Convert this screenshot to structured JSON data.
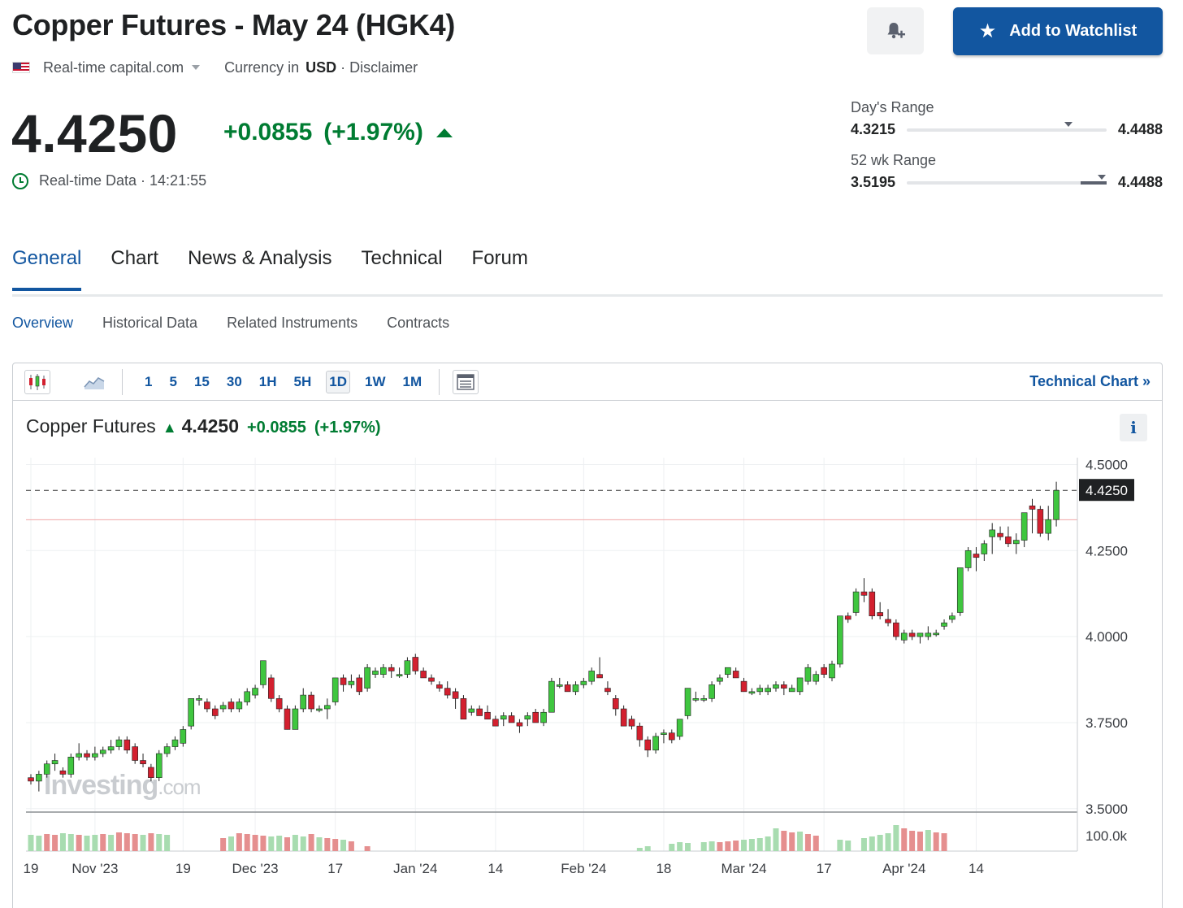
{
  "header": {
    "title": "Copper Futures - May 24 (HGK4)",
    "source": "Real-time capital.com",
    "currency_label": "Currency in",
    "currency": "USD",
    "disclaimer": "· Disclaimer",
    "watchlist_label": "Add to Watchlist"
  },
  "quote": {
    "price": "4.4250",
    "change": "+0.0855",
    "change_pct": "(+1.97%)",
    "realtime_label": "Real-time Data · 14:21:55",
    "up_color": "#007c32",
    "down_color": "#d3202f"
  },
  "ranges": {
    "day": {
      "label": "Day's Range",
      "low": "4.3215",
      "high": "4.4488",
      "marker_fraction": 0.81
    },
    "week52": {
      "label": "52 wk Range",
      "low": "3.5195",
      "high": "4.4488",
      "marker_fraction": 0.975,
      "fill_from_fraction": 0.87
    }
  },
  "tabs": [
    {
      "label": "General",
      "active": true
    },
    {
      "label": "Chart",
      "active": false
    },
    {
      "label": "News & Analysis",
      "active": false
    },
    {
      "label": "Technical",
      "active": false
    },
    {
      "label": "Forum",
      "active": false
    }
  ],
  "subtabs": [
    {
      "label": "Overview",
      "active": true
    },
    {
      "label": "Historical Data",
      "active": false
    },
    {
      "label": "Related Instruments",
      "active": false
    },
    {
      "label": "Contracts",
      "active": false
    }
  ],
  "chart_toolbar": {
    "timeframes": [
      "1",
      "5",
      "15",
      "30",
      "1H",
      "5H",
      "1D",
      "1W",
      "1M"
    ],
    "active_timeframe": "1D",
    "technical_chart_label": "Technical Chart »"
  },
  "chart_legend": {
    "name": "Copper Futures",
    "price": "4.4250",
    "change": "+0.0855",
    "change_pct": "(+1.97%)"
  },
  "watermark": {
    "brand": "Investing",
    "suffix": ".com"
  },
  "chart_data": {
    "type": "candlestick",
    "y_ticks": [
      "4.5000",
      "4.2500",
      "4.0000",
      "3.7500",
      "3.5000"
    ],
    "y_range": [
      3.49,
      4.52
    ],
    "current_price_label": "4.4250",
    "current_price": 4.425,
    "prev_close": 4.3395,
    "volume_tick": "100.0k",
    "x_ticks": [
      "19",
      "Nov '23",
      "19",
      "Dec '23",
      "17",
      "Jan '24",
      "14",
      "Feb '24",
      "18",
      "Mar '24",
      "17",
      "Apr '24",
      "14"
    ],
    "x_tick_index": [
      0,
      8,
      19,
      28,
      38,
      48,
      58,
      69,
      79,
      89,
      99,
      109,
      118
    ],
    "ohlc": [
      [
        3.59,
        3.6,
        3.57,
        3.58
      ],
      [
        3.58,
        3.61,
        3.55,
        3.6
      ],
      [
        3.6,
        3.64,
        3.59,
        3.63
      ],
      [
        3.63,
        3.66,
        3.61,
        3.64
      ],
      [
        3.61,
        3.62,
        3.59,
        3.6
      ],
      [
        3.6,
        3.66,
        3.59,
        3.65
      ],
      [
        3.65,
        3.69,
        3.64,
        3.66
      ],
      [
        3.66,
        3.67,
        3.64,
        3.65
      ],
      [
        3.65,
        3.68,
        3.64,
        3.66
      ],
      [
        3.66,
        3.68,
        3.65,
        3.67
      ],
      [
        3.67,
        3.7,
        3.66,
        3.68
      ],
      [
        3.68,
        3.71,
        3.67,
        3.7
      ],
      [
        3.7,
        3.71,
        3.66,
        3.67
      ],
      [
        3.68,
        3.69,
        3.63,
        3.64
      ],
      [
        3.64,
        3.66,
        3.62,
        3.63
      ],
      [
        3.62,
        3.63,
        3.58,
        3.59
      ],
      [
        3.59,
        3.67,
        3.58,
        3.66
      ],
      [
        3.66,
        3.69,
        3.65,
        3.68
      ],
      [
        3.68,
        3.71,
        3.67,
        3.7
      ],
      [
        3.69,
        3.74,
        3.68,
        3.73
      ],
      [
        3.74,
        3.82,
        3.73,
        3.82
      ],
      [
        3.82,
        3.83,
        3.8,
        3.82
      ],
      [
        3.81,
        3.82,
        3.78,
        3.79
      ],
      [
        3.79,
        3.8,
        3.76,
        3.77
      ],
      [
        3.79,
        3.81,
        3.78,
        3.8
      ],
      [
        3.81,
        3.82,
        3.78,
        3.79
      ],
      [
        3.79,
        3.82,
        3.78,
        3.81
      ],
      [
        3.81,
        3.85,
        3.8,
        3.84
      ],
      [
        3.83,
        3.86,
        3.82,
        3.85
      ],
      [
        3.86,
        3.93,
        3.85,
        3.93
      ],
      [
        3.88,
        3.89,
        3.81,
        3.82
      ],
      [
        3.82,
        3.83,
        3.78,
        3.79
      ],
      [
        3.79,
        3.8,
        3.73,
        3.73
      ],
      [
        3.73,
        3.8,
        3.73,
        3.79
      ],
      [
        3.79,
        3.85,
        3.78,
        3.83
      ],
      [
        3.83,
        3.84,
        3.78,
        3.79
      ],
      [
        3.79,
        3.8,
        3.78,
        3.79
      ],
      [
        3.79,
        3.82,
        3.76,
        3.8
      ],
      [
        3.81,
        3.88,
        3.8,
        3.88
      ],
      [
        3.88,
        3.89,
        3.84,
        3.86
      ],
      [
        3.86,
        3.89,
        3.85,
        3.87
      ],
      [
        3.88,
        3.89,
        3.83,
        3.84
      ],
      [
        3.85,
        3.92,
        3.84,
        3.91
      ],
      [
        3.89,
        3.91,
        3.88,
        3.9
      ],
      [
        3.89,
        3.92,
        3.88,
        3.91
      ],
      [
        3.91,
        3.92,
        3.88,
        3.9
      ],
      [
        3.89,
        3.91,
        3.88,
        3.89
      ],
      [
        3.89,
        3.94,
        3.88,
        3.93
      ],
      [
        3.94,
        3.95,
        3.89,
        3.9
      ],
      [
        3.9,
        3.91,
        3.88,
        3.88
      ],
      [
        3.88,
        3.89,
        3.86,
        3.87
      ],
      [
        3.86,
        3.87,
        3.84,
        3.85
      ],
      [
        3.85,
        3.87,
        3.82,
        3.83
      ],
      [
        3.84,
        3.85,
        3.79,
        3.82
      ],
      [
        3.82,
        3.83,
        3.76,
        3.76
      ],
      [
        3.78,
        3.8,
        3.77,
        3.79
      ],
      [
        3.79,
        3.8,
        3.77,
        3.77
      ],
      [
        3.78,
        3.8,
        3.76,
        3.76
      ],
      [
        3.76,
        3.77,
        3.74,
        3.74
      ],
      [
        3.76,
        3.78,
        3.74,
        3.77
      ],
      [
        3.77,
        3.78,
        3.75,
        3.75
      ],
      [
        3.75,
        3.76,
        3.72,
        3.74
      ],
      [
        3.76,
        3.78,
        3.74,
        3.77
      ],
      [
        3.78,
        3.79,
        3.75,
        3.75
      ],
      [
        3.75,
        3.79,
        3.74,
        3.78
      ],
      [
        3.78,
        3.88,
        3.78,
        3.87
      ],
      [
        3.86,
        3.88,
        3.85,
        3.86
      ],
      [
        3.86,
        3.87,
        3.84,
        3.84
      ],
      [
        3.84,
        3.87,
        3.83,
        3.86
      ],
      [
        3.86,
        3.88,
        3.85,
        3.87
      ],
      [
        3.87,
        3.91,
        3.86,
        3.9
      ],
      [
        3.89,
        3.94,
        3.88,
        3.88
      ],
      [
        3.85,
        3.87,
        3.83,
        3.84
      ],
      [
        3.82,
        3.83,
        3.77,
        3.79
      ],
      [
        3.79,
        3.8,
        3.74,
        3.74
      ],
      [
        3.76,
        3.77,
        3.73,
        3.74
      ],
      [
        3.74,
        3.75,
        3.68,
        3.7
      ],
      [
        3.7,
        3.71,
        3.65,
        3.67
      ],
      [
        3.67,
        3.72,
        3.66,
        3.71
      ],
      [
        3.72,
        3.73,
        3.69,
        3.72
      ],
      [
        3.72,
        3.73,
        3.69,
        3.7
      ],
      [
        3.71,
        3.76,
        3.7,
        3.76
      ],
      [
        3.77,
        3.85,
        3.76,
        3.85
      ],
      [
        3.82,
        3.84,
        3.81,
        3.82
      ],
      [
        3.82,
        3.83,
        3.81,
        3.82
      ],
      [
        3.82,
        3.87,
        3.81,
        3.86
      ],
      [
        3.87,
        3.89,
        3.86,
        3.88
      ],
      [
        3.89,
        3.91,
        3.88,
        3.91
      ],
      [
        3.9,
        3.91,
        3.88,
        3.88
      ],
      [
        3.87,
        3.88,
        3.84,
        3.84
      ],
      [
        3.84,
        3.85,
        3.83,
        3.84
      ],
      [
        3.84,
        3.86,
        3.83,
        3.85
      ],
      [
        3.84,
        3.86,
        3.83,
        3.85
      ],
      [
        3.85,
        3.87,
        3.84,
        3.86
      ],
      [
        3.86,
        3.87,
        3.83,
        3.85
      ],
      [
        3.84,
        3.86,
        3.84,
        3.85
      ],
      [
        3.84,
        3.88,
        3.83,
        3.88
      ],
      [
        3.87,
        3.92,
        3.86,
        3.91
      ],
      [
        3.87,
        3.9,
        3.86,
        3.89
      ],
      [
        3.91,
        3.92,
        3.88,
        3.89
      ],
      [
        3.88,
        3.93,
        3.87,
        3.92
      ],
      [
        3.92,
        4.06,
        3.91,
        4.06
      ],
      [
        4.06,
        4.07,
        4.04,
        4.05
      ],
      [
        4.07,
        4.14,
        4.06,
        4.13
      ],
      [
        4.13,
        4.17,
        4.1,
        4.12
      ],
      [
        4.13,
        4.14,
        4.05,
        4.06
      ],
      [
        4.07,
        4.1,
        4.05,
        4.06
      ],
      [
        4.05,
        4.08,
        4.03,
        4.04
      ],
      [
        4.04,
        4.05,
        3.99,
        4.0
      ],
      [
        3.99,
        4.02,
        3.98,
        4.01
      ],
      [
        4.01,
        4.02,
        3.99,
        4.0
      ],
      [
        4.0,
        4.01,
        3.98,
        4.01
      ],
      [
        4.0,
        4.03,
        3.99,
        4.01
      ],
      [
        4.01,
        4.02,
        4.0,
        4.01
      ],
      [
        4.03,
        4.05,
        4.02,
        4.04
      ],
      [
        4.05,
        4.07,
        4.04,
        4.06
      ],
      [
        4.07,
        4.2,
        4.06,
        4.2
      ],
      [
        4.2,
        4.26,
        4.19,
        4.25
      ],
      [
        4.24,
        4.26,
        4.19,
        4.23
      ],
      [
        4.24,
        4.28,
        4.22,
        4.27
      ],
      [
        4.29,
        4.33,
        4.24,
        4.31
      ],
      [
        4.3,
        4.32,
        4.28,
        4.29
      ],
      [
        4.29,
        4.32,
        4.26,
        4.27
      ],
      [
        4.27,
        4.3,
        4.24,
        4.28
      ],
      [
        4.28,
        4.35,
        4.26,
        4.36
      ],
      [
        4.38,
        4.4,
        4.3,
        4.37
      ],
      [
        4.37,
        4.38,
        4.29,
        4.3
      ],
      [
        4.3,
        4.38,
        4.28,
        4.34
      ],
      [
        4.34,
        4.45,
        4.32,
        4.425
      ]
    ],
    "volume": [
      [
        0,
        40,
        "g"
      ],
      [
        1,
        38,
        "g"
      ],
      [
        2,
        42,
        "r"
      ],
      [
        3,
        40,
        "r"
      ],
      [
        4,
        44,
        "g"
      ],
      [
        5,
        42,
        "g"
      ],
      [
        6,
        40,
        "r"
      ],
      [
        7,
        38,
        "g"
      ],
      [
        8,
        40,
        "g"
      ],
      [
        9,
        42,
        "r"
      ],
      [
        10,
        40,
        "g"
      ],
      [
        11,
        46,
        "r"
      ],
      [
        12,
        44,
        "r"
      ],
      [
        13,
        42,
        "r"
      ],
      [
        14,
        40,
        "g"
      ],
      [
        15,
        44,
        "r"
      ],
      [
        16,
        42,
        "g"
      ],
      [
        17,
        40,
        "g"
      ],
      [
        24,
        32,
        "r"
      ],
      [
        25,
        36,
        "g"
      ],
      [
        26,
        44,
        "r"
      ],
      [
        27,
        42,
        "r"
      ],
      [
        28,
        40,
        "r"
      ],
      [
        29,
        38,
        "r"
      ],
      [
        30,
        36,
        "g"
      ],
      [
        31,
        38,
        "g"
      ],
      [
        32,
        34,
        "r"
      ],
      [
        33,
        40,
        "g"
      ],
      [
        34,
        36,
        "g"
      ],
      [
        35,
        42,
        "r"
      ],
      [
        36,
        34,
        "g"
      ],
      [
        37,
        32,
        "r"
      ],
      [
        38,
        30,
        "r"
      ],
      [
        39,
        28,
        "g"
      ],
      [
        40,
        24,
        "r"
      ],
      [
        42,
        12,
        "r"
      ],
      [
        76,
        8,
        "g"
      ],
      [
        77,
        12,
        "g"
      ],
      [
        80,
        18,
        "g"
      ],
      [
        81,
        22,
        "g"
      ],
      [
        82,
        20,
        "g"
      ],
      [
        84,
        22,
        "g"
      ],
      [
        85,
        24,
        "g"
      ],
      [
        86,
        22,
        "r"
      ],
      [
        87,
        24,
        "r"
      ],
      [
        88,
        26,
        "r"
      ],
      [
        89,
        28,
        "g"
      ],
      [
        90,
        30,
        "g"
      ],
      [
        91,
        32,
        "g"
      ],
      [
        92,
        36,
        "g"
      ],
      [
        93,
        56,
        "g"
      ],
      [
        94,
        50,
        "r"
      ],
      [
        95,
        46,
        "r"
      ],
      [
        96,
        48,
        "g"
      ],
      [
        97,
        42,
        "r"
      ],
      [
        98,
        38,
        "r"
      ],
      [
        101,
        28,
        "g"
      ],
      [
        102,
        26,
        "g"
      ],
      [
        104,
        32,
        "g"
      ],
      [
        105,
        36,
        "g"
      ],
      [
        106,
        40,
        "g"
      ],
      [
        107,
        44,
        "g"
      ],
      [
        108,
        64,
        "g"
      ],
      [
        109,
        56,
        "r"
      ],
      [
        110,
        50,
        "r"
      ],
      [
        111,
        48,
        "r"
      ],
      [
        112,
        52,
        "g"
      ],
      [
        113,
        46,
        "r"
      ],
      [
        114,
        44,
        "r"
      ]
    ]
  }
}
